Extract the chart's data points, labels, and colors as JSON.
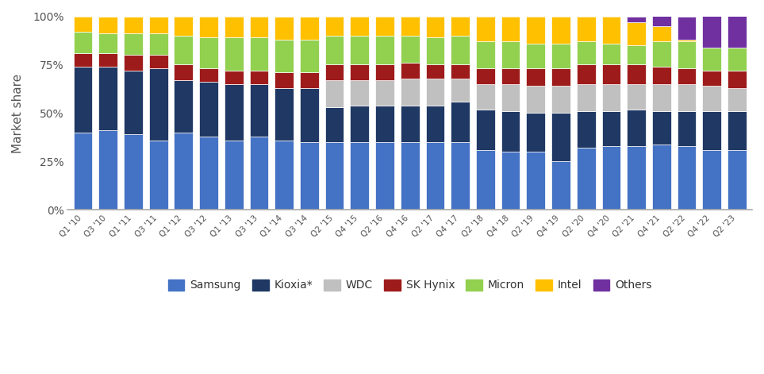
{
  "quarters": [
    "Q1 '10",
    "Q3 '10",
    "Q1 '11",
    "Q3 '11",
    "Q1 '12",
    "Q3 '12",
    "Q1 '13",
    "Q3 '13",
    "Q1 '14",
    "Q3 '14",
    "Q2 '15",
    "Q4 '15",
    "Q2 '16",
    "Q4 '16",
    "Q2 '17",
    "Q4 '17",
    "Q2 '18",
    "Q4 '18",
    "Q2 '19",
    "Q4 '19",
    "Q2 '20",
    "Q4 '20",
    "Q2 '21",
    "Q4 '21",
    "Q2 '22",
    "Q4 '22",
    "Q2 '23"
  ],
  "samsung": [
    40,
    41,
    39,
    36,
    40,
    38,
    36,
    38,
    36,
    35,
    35,
    35,
    35,
    35,
    35,
    35,
    31,
    30,
    30,
    25,
    32,
    33,
    33,
    34,
    33,
    31,
    31
  ],
  "kioxia": [
    34,
    33,
    33,
    37,
    27,
    28,
    29,
    27,
    27,
    28,
    18,
    19,
    19,
    19,
    19,
    21,
    21,
    21,
    20,
    25,
    19,
    18,
    19,
    17,
    18,
    20,
    20
  ],
  "wdc": [
    0,
    0,
    0,
    0,
    0,
    0,
    0,
    0,
    0,
    0,
    14,
    13,
    13,
    14,
    14,
    12,
    13,
    14,
    14,
    14,
    14,
    14,
    13,
    14,
    14,
    13,
    12
  ],
  "skhynix": [
    7,
    7,
    8,
    7,
    8,
    7,
    7,
    7,
    8,
    8,
    8,
    8,
    8,
    8,
    7,
    7,
    8,
    8,
    9,
    9,
    10,
    10,
    10,
    9,
    8,
    8,
    9
  ],
  "micron": [
    11,
    10,
    11,
    11,
    15,
    16,
    17,
    17,
    17,
    17,
    15,
    15,
    15,
    14,
    14,
    15,
    14,
    14,
    13,
    13,
    12,
    11,
    10,
    13,
    14,
    12,
    12
  ],
  "intel": [
    8,
    9,
    9,
    9,
    10,
    11,
    11,
    11,
    12,
    12,
    10,
    10,
    10,
    10,
    11,
    10,
    13,
    13,
    14,
    14,
    13,
    14,
    12,
    8,
    1,
    0,
    0
  ],
  "others": [
    0,
    0,
    0,
    0,
    0,
    0,
    0,
    0,
    0,
    0,
    0,
    0,
    0,
    0,
    0,
    0,
    0,
    0,
    0,
    0,
    0,
    0,
    3,
    5,
    12,
    16,
    16
  ],
  "colors": {
    "samsung": "#4472c4",
    "kioxia": "#1f3864",
    "wdc": "#c0c0c0",
    "skhynix": "#9e1b1b",
    "micron": "#92d050",
    "intel": "#ffc000",
    "others": "#7030a0"
  },
  "ylabel": "Market share",
  "yticks": [
    0,
    25,
    50,
    75,
    100
  ],
  "yticklabels": [
    "0%",
    "25%",
    "50%",
    "75%",
    "100%"
  ],
  "background": "#ffffff",
  "fig_width": 9.63,
  "fig_height": 4.71
}
